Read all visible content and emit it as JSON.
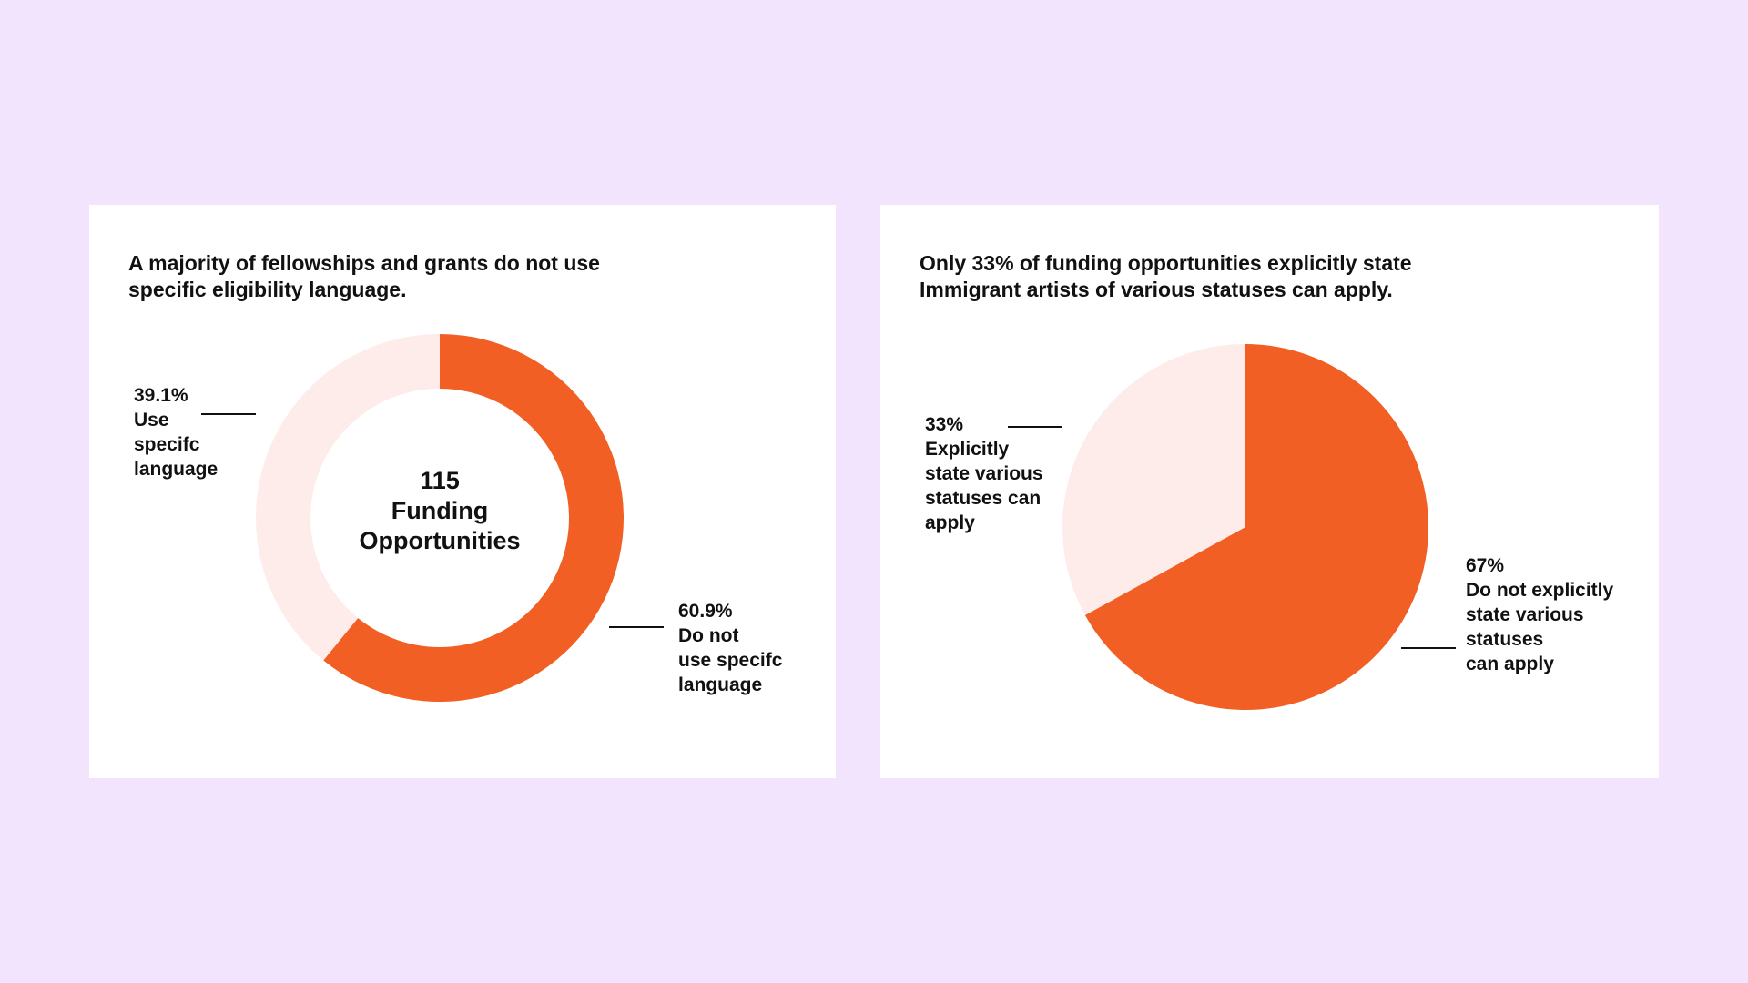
{
  "colors": {
    "background": "#f2e4fd",
    "accent": "#f25f24",
    "light": "#fdecea",
    "text": "#111111"
  },
  "chart_data": [
    {
      "type": "pie",
      "donut": true,
      "title": "A majority of fellowships and grants do not use specific eligibility language.",
      "title_lines": [
        "A majority of fellowships and grants do not use",
        "specific eligibility language."
      ],
      "center_label": [
        "115",
        "Funding",
        "Opportunities"
      ],
      "slices": [
        {
          "label_lines": [
            "60.9%",
            "Do not",
            "use specifc",
            "language"
          ],
          "value": 60.9,
          "color": "#f25f24"
        },
        {
          "label_lines": [
            "39.1%",
            "Use",
            "specifc",
            "language"
          ],
          "value": 39.1,
          "color": "#fdecea"
        }
      ]
    },
    {
      "type": "pie",
      "donut": false,
      "title": "Only 33% of funding opportunities explicitly state Immigrant artists of various statuses can apply.",
      "title_lines": [
        "Only 33% of funding opportunities explicitly state",
        "Immigrant artists of various statuses can apply."
      ],
      "slices": [
        {
          "label_lines": [
            "67%",
            "Do not explicitly",
            "state various",
            "statuses",
            "can apply"
          ],
          "value": 67,
          "color": "#f25f24"
        },
        {
          "label_lines": [
            "33%",
            "Explicitly",
            "state various",
            "statuses can",
            "apply"
          ],
          "value": 33,
          "color": "#fdecea"
        }
      ]
    }
  ]
}
